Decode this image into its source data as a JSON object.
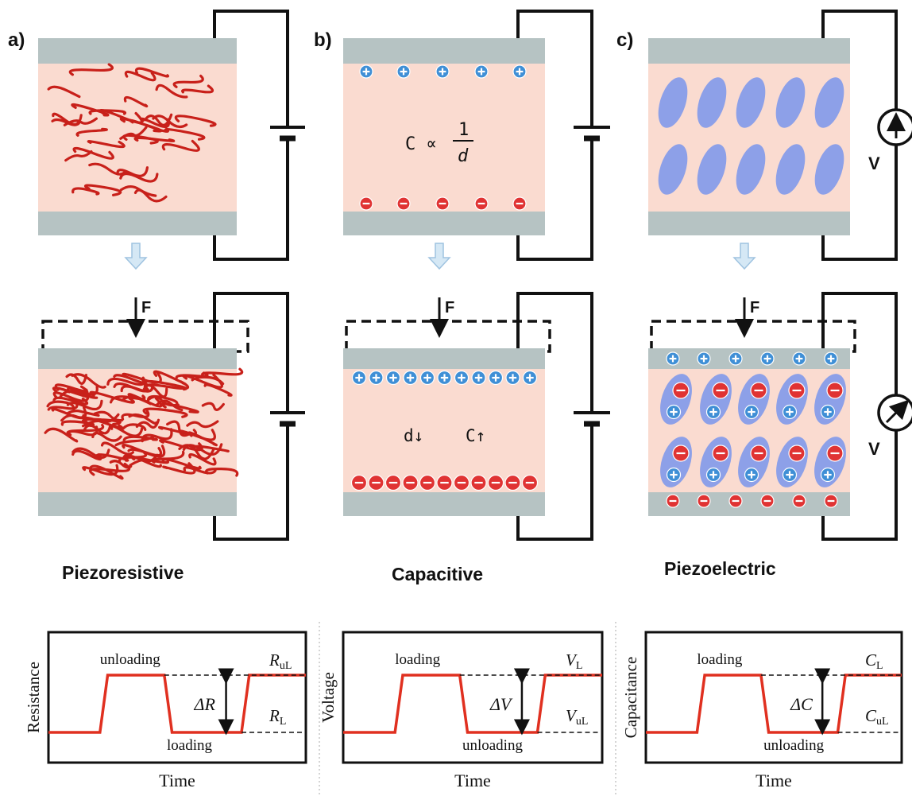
{
  "panels": [
    {
      "label": "a)",
      "name": "Piezoresistive"
    },
    {
      "label": "b)",
      "name": "Capacitive"
    },
    {
      "label": "c)",
      "name": "Piezoelectric"
    }
  ],
  "force_label": "F",
  "voltmeter_label": "V",
  "capacitive": {
    "formula_lhs": "C ∝",
    "formula_num": "1",
    "formula_den": "d",
    "d_change": "d↓",
    "c_change": "C↑"
  },
  "graphs": [
    {
      "ylabel": "Resistance",
      "xlabel": "Time",
      "top_state": "unloading",
      "bottom_state": "loading",
      "delta": "ΔR",
      "top_sym": "R",
      "top_sub": "uL",
      "bottom_sym": "R",
      "bottom_sub": "L"
    },
    {
      "ylabel": "Voltage",
      "xlabel": "Time",
      "top_state": "loading",
      "bottom_state": "unloading",
      "delta": "ΔV",
      "top_sym": "V",
      "top_sub": "L",
      "bottom_sym": "V",
      "bottom_sub": "uL"
    },
    {
      "ylabel": "Capacitance",
      "xlabel": "Time",
      "top_state": "loading",
      "bottom_state": "unloading",
      "delta": "ΔC",
      "top_sym": "C",
      "top_sub": "L",
      "bottom_sym": "C",
      "bottom_sub": "uL"
    }
  ],
  "colors": {
    "electrode": "#b6c3c3",
    "material": "#fadbd0",
    "fiber": "#c8201a",
    "plus": "#3f8fd6",
    "minus": "#e03333",
    "dipole": "#8da0e8",
    "arrow": "#cfe3f2",
    "trace": "#e03020"
  }
}
